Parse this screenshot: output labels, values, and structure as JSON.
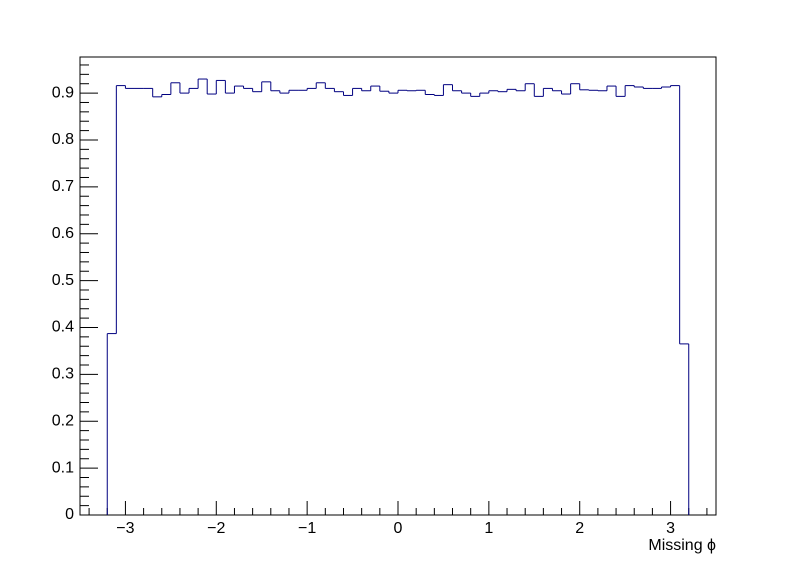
{
  "chart_data": {
    "type": "histogram",
    "x_label": "Missing ϕ",
    "color": "#000080",
    "bins": [
      -3.2,
      -3.1,
      -3.0,
      -2.9,
      -2.8,
      -2.7,
      -2.6,
      -2.5,
      -2.4,
      -2.3,
      -2.2,
      -2.1,
      -2.0,
      -1.9,
      -1.8,
      -1.7,
      -1.6,
      -1.5,
      -1.4,
      -1.3,
      -1.2,
      -1.1,
      -1.0,
      -0.9,
      -0.8,
      -0.7,
      -0.6,
      -0.5,
      -0.4,
      -0.3,
      -0.2,
      -0.1,
      0.0,
      0.1,
      0.2,
      0.3,
      0.4,
      0.5,
      0.6,
      0.7,
      0.8,
      0.9,
      1.0,
      1.1,
      1.2,
      1.3,
      1.4,
      1.5,
      1.6,
      1.7,
      1.8,
      1.9,
      2.0,
      2.1,
      2.2,
      2.3,
      2.4,
      2.5,
      2.6,
      2.7,
      2.8,
      2.9,
      3.0,
      3.1,
      3.2
    ],
    "values": [
      0.387,
      0.916,
      0.91,
      0.91,
      0.91,
      0.892,
      0.897,
      0.922,
      0.9,
      0.91,
      0.93,
      0.898,
      0.927,
      0.9,
      0.915,
      0.91,
      0.903,
      0.924,
      0.905,
      0.9,
      0.906,
      0.906,
      0.91,
      0.922,
      0.91,
      0.903,
      0.895,
      0.91,
      0.905,
      0.915,
      0.904,
      0.9,
      0.906,
      0.905,
      0.906,
      0.897,
      0.895,
      0.918,
      0.905,
      0.9,
      0.893,
      0.9,
      0.905,
      0.903,
      0.908,
      0.905,
      0.92,
      0.893,
      0.91,
      0.905,
      0.898,
      0.92,
      0.907,
      0.906,
      0.905,
      0.915,
      0.893,
      0.916,
      0.913,
      0.91,
      0.91,
      0.913,
      0.916,
      0.365
    ],
    "xlim": [
      -3.5,
      3.5
    ],
    "ylim": [
      0,
      0.977
    ],
    "xticks": [
      {
        "value": -3,
        "label": "−3"
      },
      {
        "value": -2,
        "label": "−2"
      },
      {
        "value": -1,
        "label": "−1"
      },
      0,
      1,
      2,
      3
    ],
    "yticks": [
      0,
      0.1,
      0.2,
      0.3,
      0.4,
      0.5,
      0.6,
      0.7,
      0.8,
      0.9
    ]
  }
}
